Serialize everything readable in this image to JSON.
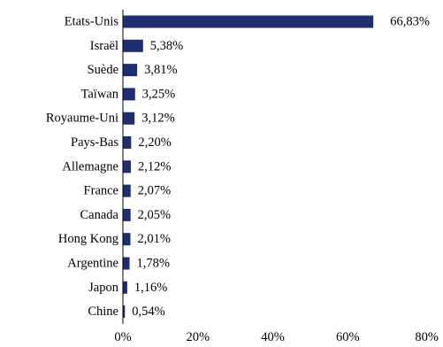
{
  "chart_data": {
    "type": "bar",
    "orientation": "horizontal",
    "categories": [
      "Etats-Unis",
      "Israël",
      "Suède",
      "Taïwan",
      "Royaume-Uni",
      "Pays-Bas",
      "Allemagne",
      "France",
      "Canada",
      "Hong Kong",
      "Argentine",
      "Japon",
      "Chine"
    ],
    "values": [
      66.83,
      5.38,
      3.81,
      3.25,
      3.12,
      2.2,
      2.12,
      2.07,
      2.05,
      2.01,
      1.78,
      1.16,
      0.54
    ],
    "value_labels": [
      "66,83%",
      "5,38%",
      "3,81%",
      "3,25%",
      "3,12%",
      "2,20%",
      "2,12%",
      "2,07%",
      "2,05%",
      "2,01%",
      "1,78%",
      "1,16%",
      "0,54%"
    ],
    "title": "",
    "xlabel": "",
    "ylabel": "",
    "xlim": [
      0,
      80
    ],
    "x_ticks": [
      "0%",
      "20%",
      "40%",
      "60%",
      "80%"
    ],
    "grid": false,
    "legend": "none",
    "bar_color": "#1f2e6e"
  }
}
